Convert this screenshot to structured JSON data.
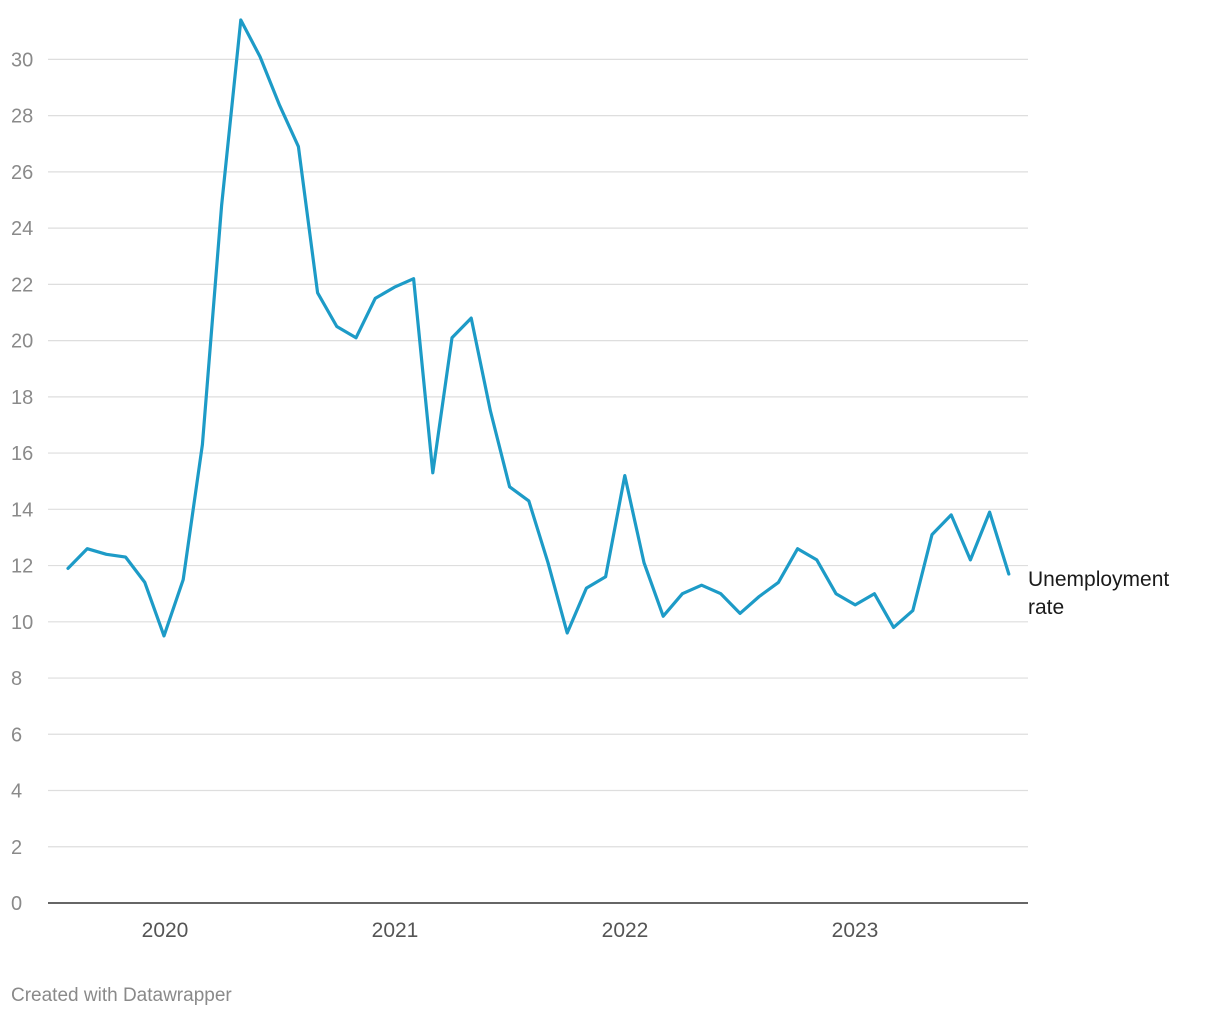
{
  "chart_data": {
    "type": "line",
    "title": "",
    "xlabel": "",
    "ylabel": "",
    "ylim": [
      0,
      31.5
    ],
    "yticks": [
      "0",
      "2",
      "4",
      "6",
      "8",
      "10",
      "12",
      "14",
      "16",
      "18",
      "20",
      "22",
      "24",
      "26",
      "28",
      "30"
    ],
    "x_tick_labels": [
      "2020",
      "2021",
      "2022",
      "2023"
    ],
    "grid": true,
    "line_color": "#1d9bc7",
    "series": [
      {
        "name": "Unemployment rate",
        "label_lines": [
          "Unemployment",
          "rate"
        ],
        "x": [
          "2019-08",
          "2019-09",
          "2019-10",
          "2019-11",
          "2019-12",
          "2020-01",
          "2020-02",
          "2020-03",
          "2020-04",
          "2020-05",
          "2020-06",
          "2020-07",
          "2020-08",
          "2020-09",
          "2020-10",
          "2020-11",
          "2020-12",
          "2021-01",
          "2021-02",
          "2021-03",
          "2021-04",
          "2021-05",
          "2021-06",
          "2021-07",
          "2021-08",
          "2021-09",
          "2021-10",
          "2021-11",
          "2021-12",
          "2022-01",
          "2022-02",
          "2022-03",
          "2022-04",
          "2022-05",
          "2022-06",
          "2022-07",
          "2022-08",
          "2022-09",
          "2022-10",
          "2022-11",
          "2022-12",
          "2023-01",
          "2023-02",
          "2023-03",
          "2023-04",
          "2023-05",
          "2023-06",
          "2023-07",
          "2023-08",
          "2023-09"
        ],
        "values": [
          11.9,
          12.6,
          12.4,
          12.3,
          11.4,
          9.5,
          11.5,
          16.3,
          24.8,
          31.4,
          30.1,
          28.4,
          26.9,
          21.7,
          20.5,
          20.1,
          21.5,
          21.9,
          22.2,
          15.3,
          20.1,
          20.8,
          17.5,
          14.8,
          14.3,
          12.1,
          9.6,
          11.2,
          11.6,
          15.2,
          12.1,
          10.2,
          11.0,
          11.3,
          11.0,
          10.3,
          10.9,
          11.4,
          12.6,
          12.2,
          11.0,
          10.6,
          11.0,
          9.8,
          10.4,
          13.1,
          13.8,
          12.2,
          13.9,
          11.7
        ]
      }
    ]
  },
  "footer": {
    "text": "Created with Datawrapper"
  }
}
